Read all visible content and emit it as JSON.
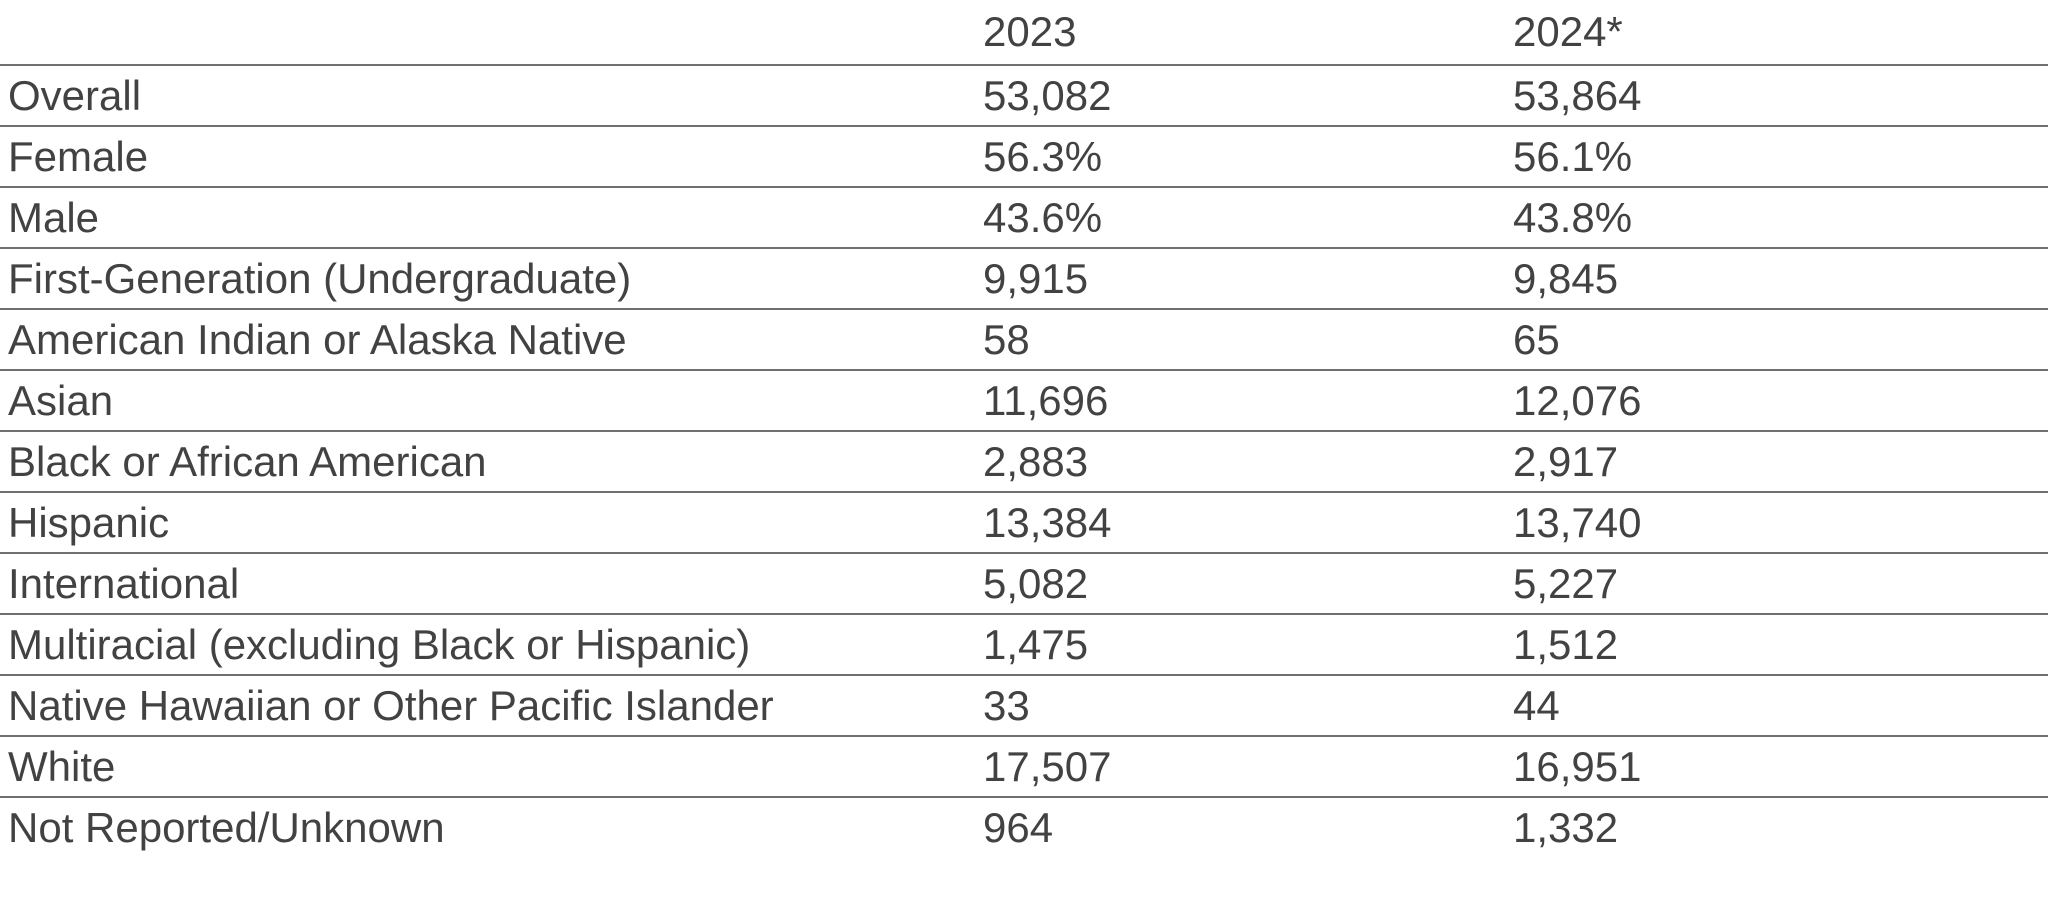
{
  "chart_data": {
    "type": "table",
    "columns": [
      "",
      "2023",
      "2024*"
    ],
    "rows": [
      {
        "label": "Overall",
        "values": [
          "53,082",
          "53,864"
        ]
      },
      {
        "label": "Female",
        "values": [
          "56.3%",
          "56.1%"
        ]
      },
      {
        "label": "Male",
        "values": [
          "43.6%",
          "43.8%"
        ]
      },
      {
        "label": "First-Generation (Undergraduate)",
        "values": [
          "9,915",
          "9,845"
        ]
      },
      {
        "label": "American Indian or Alaska Native",
        "values": [
          "58",
          "65"
        ]
      },
      {
        "label": "Asian",
        "values": [
          "11,696",
          "12,076"
        ]
      },
      {
        "label": "Black or African American",
        "values": [
          "2,883",
          "2,917"
        ]
      },
      {
        "label": "Hispanic",
        "values": [
          "13,384",
          "13,740"
        ]
      },
      {
        "label": "International",
        "values": [
          "5,082",
          "5,227"
        ]
      },
      {
        "label": "Multiracial (excluding Black or Hispanic)",
        "values": [
          "1,475",
          "1,512"
        ]
      },
      {
        "label": "Native Hawaiian or Other Pacific Islander",
        "values": [
          "33",
          "44"
        ]
      },
      {
        "label": "White",
        "values": [
          "17,507",
          "16,951"
        ]
      },
      {
        "label": "Not Reported/Unknown",
        "values": [
          "964",
          "1,332"
        ]
      }
    ],
    "title": "",
    "layout": {
      "grid": "horizontal-rules-only",
      "header_position": "top"
    }
  },
  "colors": {
    "background": "#ffffff",
    "text": "#424242",
    "rule_line": "#707070"
  }
}
